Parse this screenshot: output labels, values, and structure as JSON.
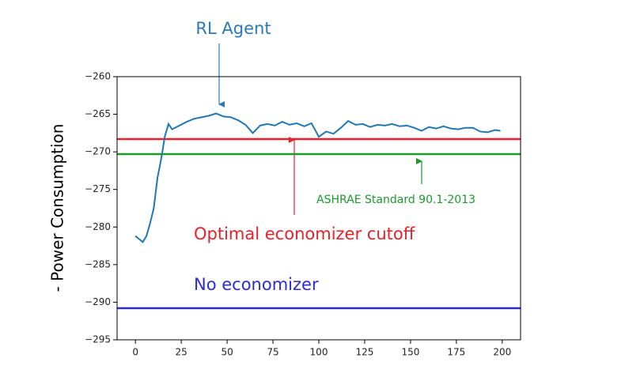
{
  "chart_data": {
    "type": "line",
    "y_label": "- Power Consumption",
    "x": [
      0,
      2,
      4,
      6,
      8,
      10,
      12,
      14,
      16,
      18,
      20,
      24,
      28,
      32,
      36,
      40,
      44,
      48,
      52,
      56,
      60,
      64,
      68,
      72,
      76,
      80,
      84,
      88,
      92,
      96,
      100,
      104,
      108,
      112,
      116,
      120,
      124,
      128,
      132,
      136,
      140,
      144,
      148,
      152,
      156,
      160,
      164,
      168,
      172,
      176,
      180,
      184,
      188,
      192,
      196,
      199
    ],
    "series": [
      {
        "name": "RL Agent",
        "color": "#1f77b4",
        "values": [
          -281.2,
          -281.6,
          -282.0,
          -281.2,
          -279.5,
          -277.5,
          -273.5,
          -271,
          -268,
          -266.3,
          -267,
          -266.5,
          -266,
          -265.6,
          -265.4,
          -265.2,
          -264.9,
          -265.3,
          -265.4,
          -265.8,
          -266.4,
          -267.5,
          -266.5,
          -266.3,
          -266.5,
          -266.0,
          -266.4,
          -266.2,
          -266.6,
          -266.2,
          -268.0,
          -267.3,
          -267.6,
          -266.8,
          -265.9,
          -266.4,
          -266.3,
          -266.7,
          -266.4,
          -266.5,
          -266.3,
          -266.6,
          -266.5,
          -266.8,
          -267.2,
          -266.7,
          -266.9,
          -266.6,
          -266.9,
          -267.0,
          -266.8,
          -266.8,
          -267.3,
          -267.4,
          -267.1,
          -267.2
        ]
      }
    ],
    "hlines": [
      {
        "name": "Optimal economizer cutoff",
        "color": "#e8202a",
        "value": -268.3
      },
      {
        "name": "ASHRAE Standard 90.1-2013",
        "color": "#1a9a2a",
        "value": -270.3
      },
      {
        "name": "No economizer",
        "color": "#2b2bd9",
        "value": -290.8
      }
    ],
    "xlim": [
      -10,
      210
    ],
    "xticks": [
      0,
      25,
      50,
      75,
      100,
      125,
      150,
      175,
      200
    ],
    "ylim": [
      -295,
      -260
    ],
    "yticks": [
      {
        "value": -260,
        "label": "−260"
      },
      {
        "value": -265,
        "label": "−265"
      },
      {
        "value": -270,
        "label": "−270"
      },
      {
        "value": -275,
        "label": "−275"
      },
      {
        "value": -280,
        "label": "−280"
      },
      {
        "value": -285,
        "label": "−285"
      },
      {
        "value": -290,
        "label": "−290"
      },
      {
        "value": -295,
        "label": "−295"
      }
    ]
  }
}
